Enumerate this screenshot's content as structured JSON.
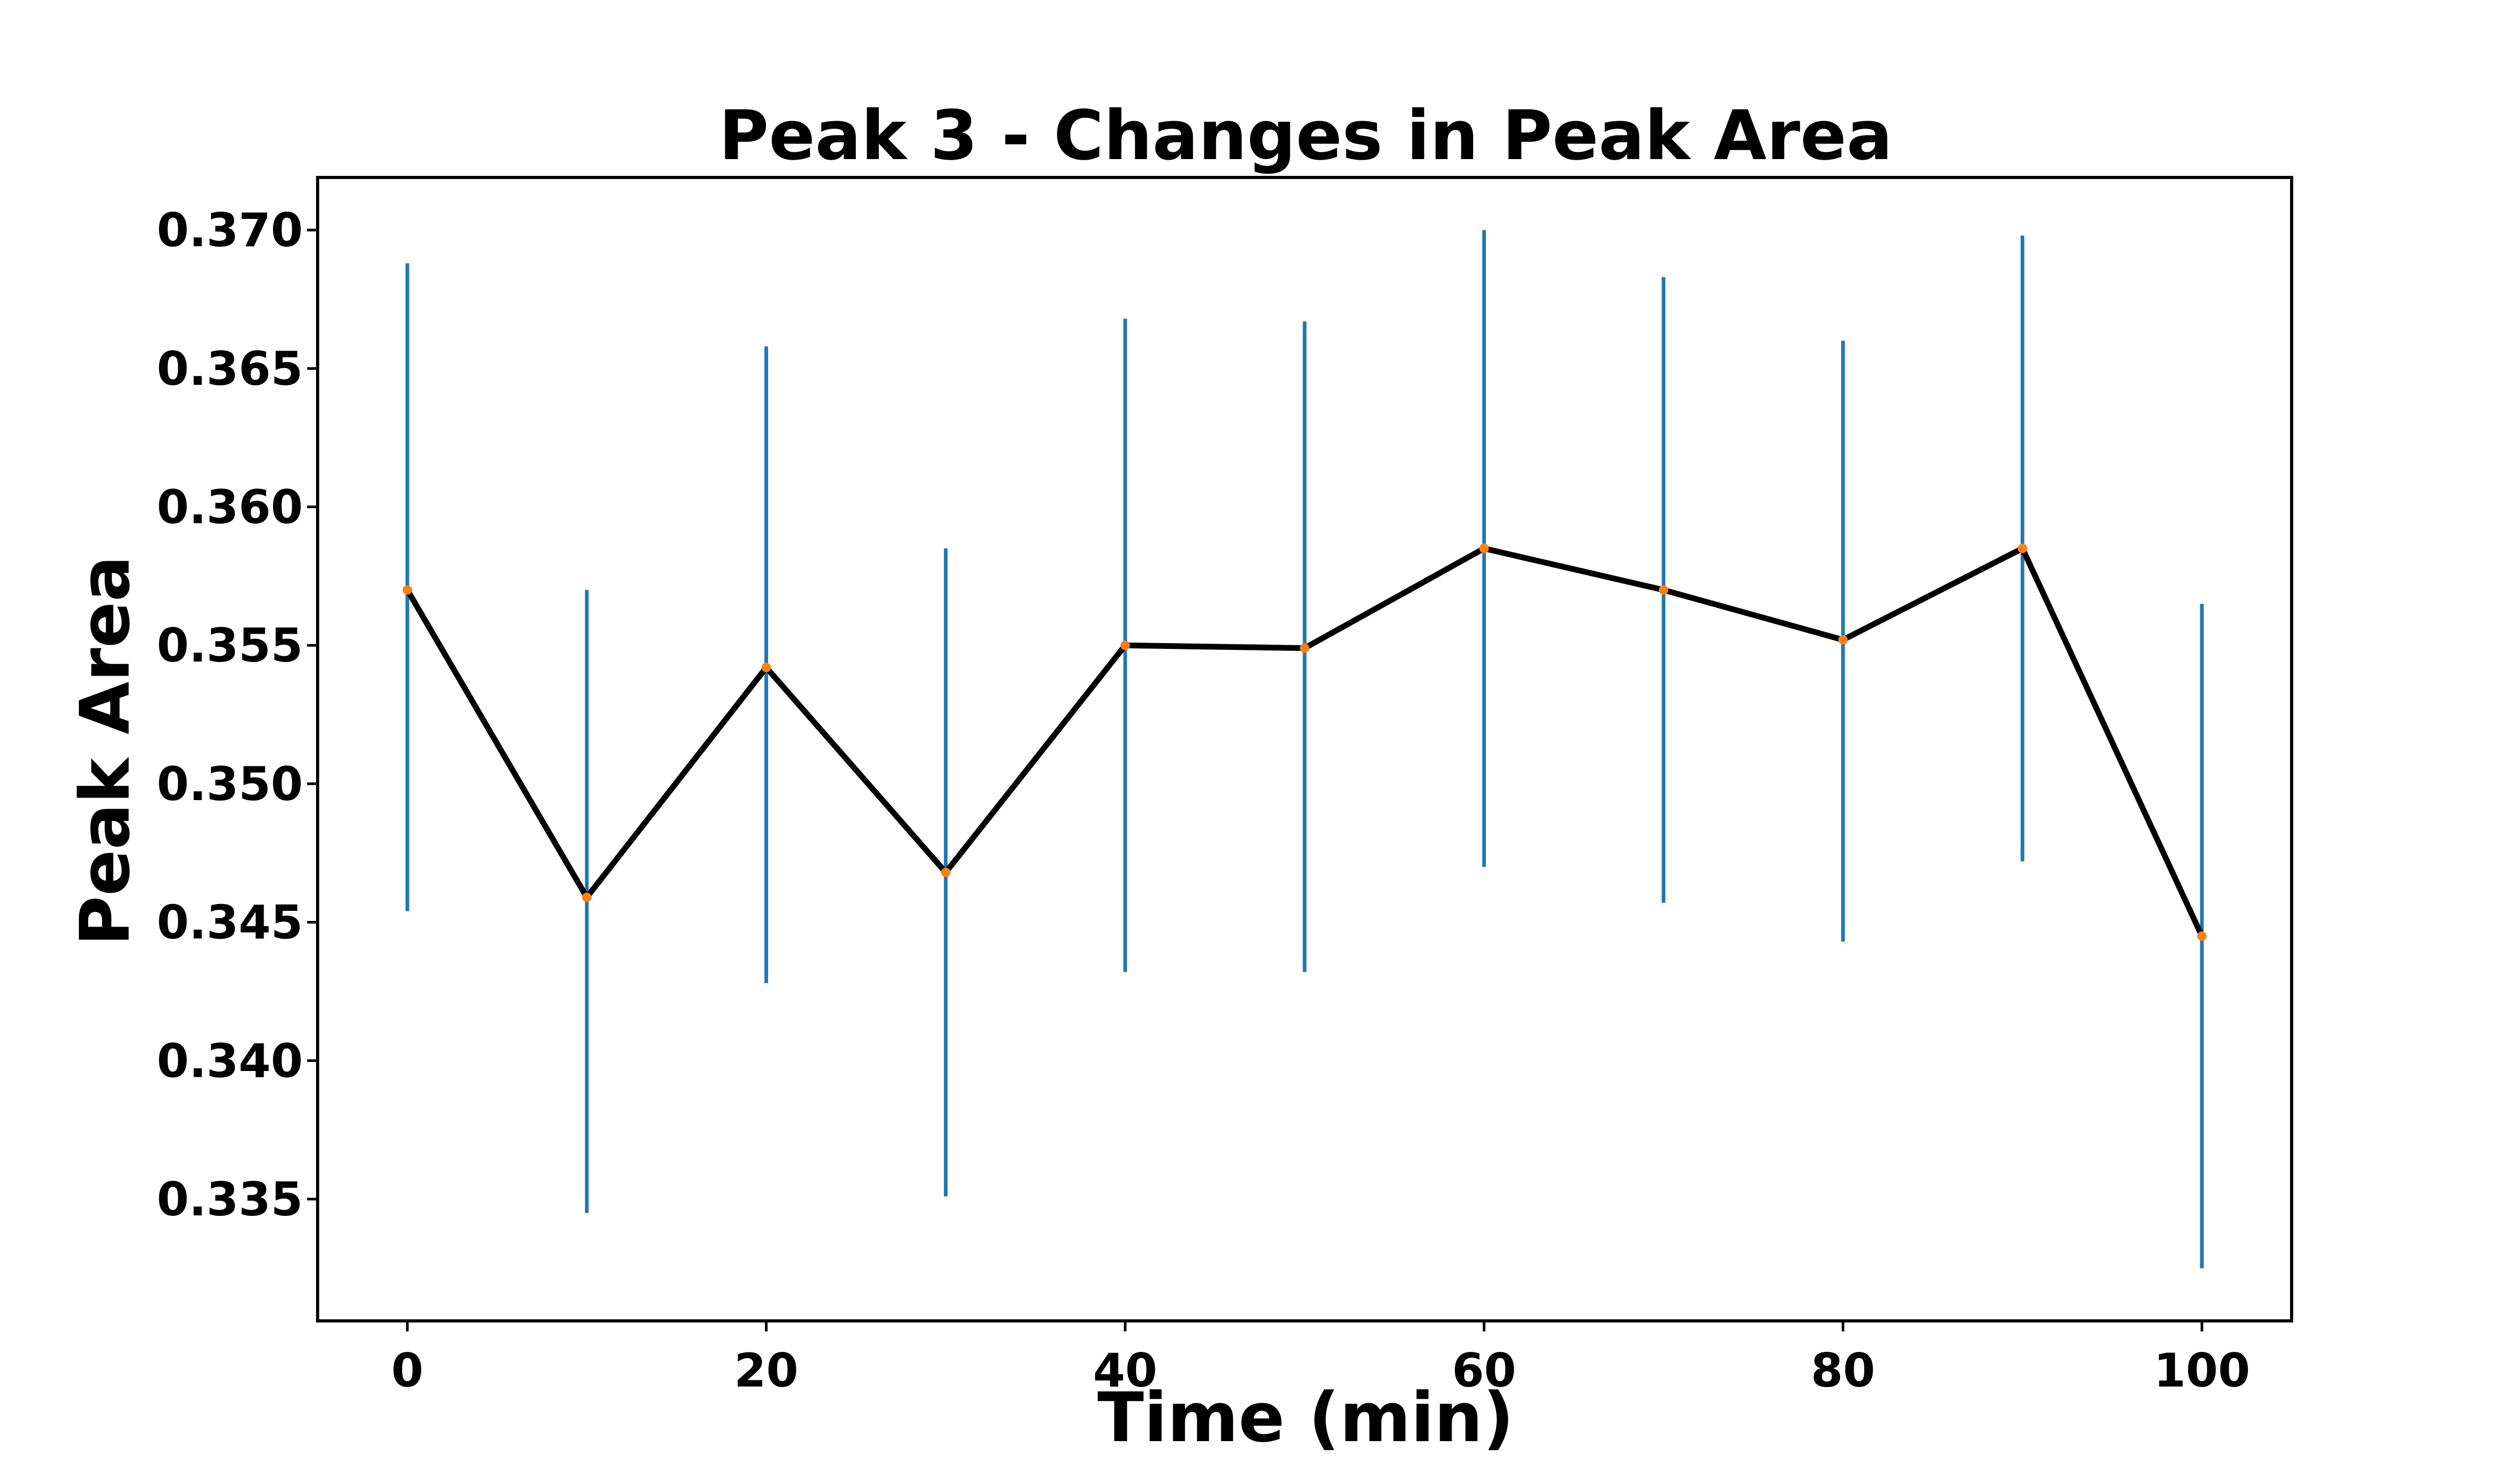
{
  "chart_data": {
    "type": "line",
    "title": "Peak 3 - Changes in Peak Area",
    "xlabel": "Time (min)",
    "ylabel": "Peak Area",
    "xlim": [
      -5,
      105
    ],
    "ylim": [
      0.3306,
      0.3719
    ],
    "xticks": [
      0,
      20,
      40,
      60,
      80,
      100
    ],
    "xtick_labels": [
      "0",
      "20",
      "40",
      "60",
      "80",
      "100"
    ],
    "yticks": [
      0.335,
      0.34,
      0.345,
      0.35,
      0.355,
      0.36,
      0.365,
      0.37
    ],
    "ytick_labels": [
      "0.335",
      "0.340",
      "0.345",
      "0.350",
      "0.355",
      "0.360",
      "0.365",
      "0.370"
    ],
    "grid": false,
    "series": [
      {
        "x": [
          0,
          10,
          20,
          30,
          40,
          50,
          60,
          70,
          80,
          90,
          100
        ],
        "y": [
          0.357,
          0.3459,
          0.3542,
          0.3468,
          0.355,
          0.3549,
          0.3585,
          0.357,
          0.3552,
          0.3585,
          0.3445
        ],
        "yerr_low": [
          0.3454,
          0.3345,
          0.3428,
          0.3351,
          0.3432,
          0.3432,
          0.347,
          0.3457,
          0.3443,
          0.3472,
          0.3325
        ],
        "yerr_high": [
          0.3688,
          0.357,
          0.3658,
          0.3585,
          0.3668,
          0.3667,
          0.37,
          0.3683,
          0.366,
          0.3698,
          0.3565
        ]
      }
    ],
    "colors": {
      "line": "#000000",
      "marker": "#ff7f0e",
      "errorbar": "#1f77b4"
    }
  }
}
